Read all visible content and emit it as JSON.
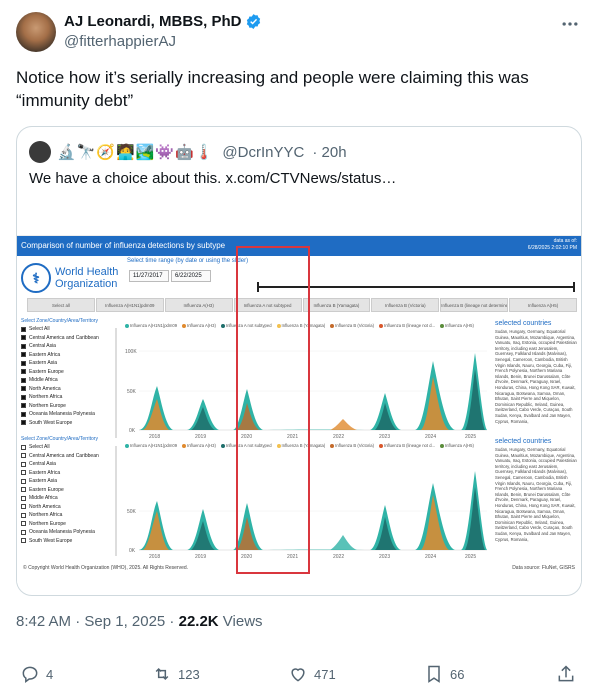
{
  "author": {
    "display_name": "AJ Leonardi, MBBS, PhD",
    "handle": "@fitterhappierAJ",
    "verified": true
  },
  "tweet_text": "Notice how it’s serially increasing and people were claiming this was “immunity debt”",
  "quote": {
    "emojis": "🔬🔭🧭🧑‍💻🏞️👾🤖🌡️",
    "handle": "@DcrInYYC",
    "time": "· 20h",
    "text": "We have a choice about this.  x.com/CTVNews/status…",
    "dashboard": {
      "title": "Comparison of  number of influenza detections by subtype",
      "data_as_of_label": "data as of:",
      "data_as_of_value": "6/28/2025 2:02:10 PM",
      "org_line1": "World Health",
      "org_line2": "Organization",
      "time_label": "Select time range (by date or using the slider)",
      "date_from": "11/27/2017",
      "date_to": "6/22/2025",
      "tabs": [
        "Select all",
        "Influenza A(H1N1)pdm09",
        "Influenza A(H3)",
        "Influenza A not subtyped",
        "Influenza B (Yamagata)",
        "Influenza B (Victoria)",
        "Influenza B (lineage not determined)",
        "Influenza A(H5)"
      ],
      "filter_title": "Select Zone/Country/Area/Territory",
      "regions": [
        "Select All",
        "Central America and Caribbean",
        "Central Asia",
        "Eastern Africa",
        "Eastern Asia",
        "Eastern Europe",
        "Middle Africa",
        "North America",
        "Northern Africa",
        "Northern Europe",
        "Oceania Melanesia Polynesia",
        "South West Europe"
      ],
      "legend": [
        "Influenza A(H1N1)pdm09",
        "Influenza A(H3)",
        "Influenza A not subtyped",
        "Influenza B (Yamagata)",
        "Influenza B (Victoria)",
        "Influenza B (lineage not d...",
        "Influenza A(H5)"
      ],
      "legend_colors": [
        "#2fb3a6",
        "#e08a2e",
        "#1e6e6b",
        "#f2c14e",
        "#c46a2a",
        "#d9572b",
        "#5a8c3a"
      ],
      "selected_countries_title": "selected countries",
      "selected_countries_text": "Sudan, Hungary, Germany, Equatorial Guinea, Mauritius, Mozambique, Argentina, Vanuatu, Iraq, Estonia, occupied Palestinian territory, including east Jerusalem, Guernsey, Falkland Islands (Malvinas), Senegal, Cameroon, Cambodia, British Virgin Islands, Nauru, Georgia, Cuba, Fiji, French Polynesia, Northern Mariana Islands, Benin, Brunei Darussalam, Côte d'Ivoire, Denmark, Paraguay, Israel, Honduras, China, Hong Kong SAR, Kuwait, Nicaragua, Botswana, Samoa, Oman, Bhutan, Saint Pierre and Miquelon, Dominican Republic, Ireland, Guinea, Switzerland, Cabo Verde, Curaçao, South Sudan, Kenya, Svalbard and Jan Mayen, Cyprus, Romania,",
      "chart1": {
        "y_ticks": [
          "100K",
          "50K",
          "0K"
        ],
        "x_ticks": [
          "2018",
          "2019",
          "2020",
          "2021",
          "2022",
          "2023",
          "2024",
          "2025"
        ]
      },
      "chart2": {
        "y_ticks": [
          "50K",
          "0K"
        ],
        "x_ticks": [
          "2018",
          "2019",
          "2020",
          "2021",
          "2022",
          "2023",
          "2024",
          "2025"
        ]
      },
      "copyright": "© Copyright World Health Organization (WHO), 2025. All Rights Reserved.",
      "data_source": "Data source: FluNet, GISRS"
    }
  },
  "meta": {
    "time": "8:42 AM · Sep 1, 2025 · ",
    "views_count": "22.2K",
    "views_label": " Views"
  },
  "actions": {
    "replies": "4",
    "reposts": "123",
    "likes": "471",
    "bookmarks": "66"
  },
  "icons": [
    "verified-badge-icon",
    "more-icon",
    "reply-icon",
    "repost-icon",
    "like-icon",
    "bookmark-icon",
    "share-icon"
  ]
}
